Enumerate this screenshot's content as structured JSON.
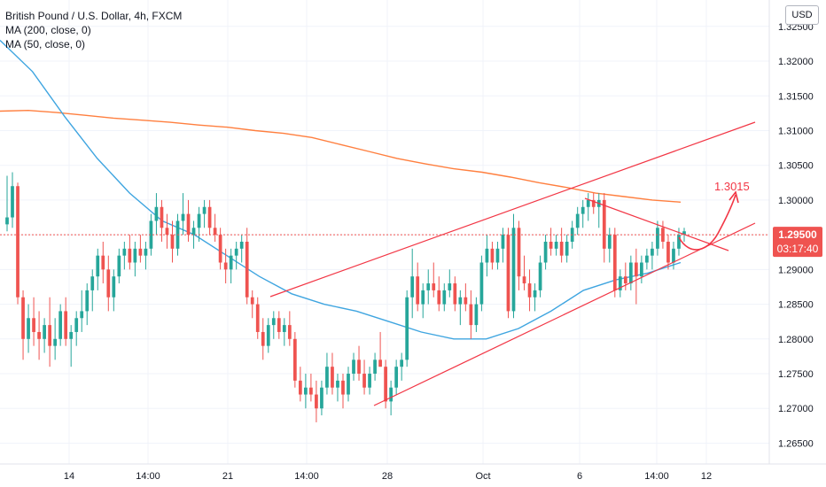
{
  "header": {
    "title": "British Pound / U.S. Dollar, 4h, FXCM",
    "indicators": [
      "MA (200, close, 0)",
      "MA (50, close, 0)"
    ],
    "currency": "USD"
  },
  "colors": {
    "up": "#26a69a",
    "down": "#ef5350",
    "ma200": "#ff7f3f",
    "ma50": "#3fa5e0",
    "drawing": "#f23645",
    "price_tag": "#ef5350"
  },
  "chart_data": {
    "type": "candlestick",
    "ylim": [
      1.262,
      1.3288
    ],
    "y_ticks": [
      "1.32500",
      "1.32000",
      "1.31500",
      "1.31000",
      "1.30500",
      "1.30000",
      "1.29500",
      "1.29000",
      "1.28500",
      "1.28000",
      "1.27500",
      "1.27000",
      "1.26500"
    ],
    "x_ticks": [
      "14",
      "14:00",
      "21",
      "14:00",
      "28",
      "Oct",
      "6",
      "14:00",
      "12"
    ],
    "last_price": "1.29500",
    "countdown": "03:17:40",
    "annotation": "1.3015",
    "candles": [
      [
        1.2965,
        1.3035,
        1.2955,
        1.2975
      ],
      [
        1.2975,
        1.304,
        1.296,
        1.302
      ],
      [
        1.302,
        1.3025,
        1.285,
        1.286
      ],
      [
        1.286,
        1.287,
        1.277,
        1.28
      ],
      [
        1.28,
        1.285,
        1.278,
        1.283
      ],
      [
        1.283,
        1.286,
        1.279,
        1.281
      ],
      [
        1.281,
        1.284,
        1.277,
        1.28
      ],
      [
        1.28,
        1.283,
        1.278,
        1.282
      ],
      [
        1.282,
        1.286,
        1.276,
        1.279
      ],
      [
        1.279,
        1.283,
        1.277,
        1.28
      ],
      [
        1.28,
        1.285,
        1.279,
        1.284
      ],
      [
        1.284,
        1.286,
        1.279,
        1.28
      ],
      [
        1.28,
        1.282,
        1.276,
        1.281
      ],
      [
        1.281,
        1.284,
        1.279,
        1.283
      ],
      [
        1.283,
        1.287,
        1.281,
        1.284
      ],
      [
        1.284,
        1.288,
        1.282,
        1.287
      ],
      [
        1.287,
        1.29,
        1.284,
        1.289
      ],
      [
        1.289,
        1.293,
        1.287,
        1.292
      ],
      [
        1.292,
        1.294,
        1.288,
        1.29
      ],
      [
        1.29,
        1.292,
        1.284,
        1.286
      ],
      [
        1.286,
        1.29,
        1.284,
        1.289
      ],
      [
        1.289,
        1.293,
        1.288,
        1.292
      ],
      [
        1.292,
        1.294,
        1.29,
        1.293
      ],
      [
        1.293,
        1.295,
        1.29,
        1.291
      ],
      [
        1.291,
        1.294,
        1.289,
        1.293
      ],
      [
        1.293,
        1.295,
        1.291,
        1.292
      ],
      [
        1.292,
        1.294,
        1.29,
        1.293
      ],
      [
        1.293,
        1.298,
        1.292,
        1.297
      ],
      [
        1.297,
        1.301,
        1.295,
        1.299
      ],
      [
        1.299,
        1.3,
        1.294,
        1.296
      ],
      [
        1.296,
        1.298,
        1.293,
        1.295
      ],
      [
        1.295,
        1.297,
        1.291,
        1.293
      ],
      [
        1.293,
        1.298,
        1.292,
        1.297
      ],
      [
        1.297,
        1.301,
        1.295,
        1.298
      ],
      [
        1.298,
        1.3,
        1.294,
        1.295
      ],
      [
        1.295,
        1.297,
        1.293,
        1.296
      ],
      [
        1.296,
        1.299,
        1.294,
        1.298
      ],
      [
        1.298,
        1.3,
        1.296,
        1.299
      ],
      [
        1.299,
        1.3,
        1.295,
        1.296
      ],
      [
        1.296,
        1.298,
        1.294,
        1.295
      ],
      [
        1.295,
        1.296,
        1.29,
        1.291
      ],
      [
        1.291,
        1.293,
        1.288,
        1.29
      ],
      [
        1.29,
        1.293,
        1.288,
        1.292
      ],
      [
        1.292,
        1.294,
        1.29,
        1.293
      ],
      [
        1.293,
        1.295,
        1.291,
        1.294
      ],
      [
        1.294,
        1.296,
        1.285,
        1.286
      ],
      [
        1.286,
        1.287,
        1.283,
        1.285
      ],
      [
        1.285,
        1.286,
        1.28,
        1.281
      ],
      [
        1.281,
        1.283,
        1.277,
        1.279
      ],
      [
        1.279,
        1.283,
        1.278,
        1.282
      ],
      [
        1.282,
        1.284,
        1.28,
        1.283
      ],
      [
        1.283,
        1.284,
        1.28,
        1.281
      ],
      [
        1.281,
        1.283,
        1.279,
        1.282
      ],
      [
        1.282,
        1.284,
        1.279,
        1.28
      ],
      [
        1.28,
        1.281,
        1.273,
        1.274
      ],
      [
        1.274,
        1.276,
        1.271,
        1.272
      ],
      [
        1.272,
        1.275,
        1.27,
        1.273
      ],
      [
        1.273,
        1.275,
        1.271,
        1.272
      ],
      [
        1.272,
        1.274,
        1.268,
        1.27
      ],
      [
        1.27,
        1.274,
        1.269,
        1.273
      ],
      [
        1.273,
        1.278,
        1.272,
        1.276
      ],
      [
        1.276,
        1.278,
        1.272,
        1.273
      ],
      [
        1.273,
        1.275,
        1.271,
        1.274
      ],
      [
        1.274,
        1.275,
        1.27,
        1.272
      ],
      [
        1.272,
        1.276,
        1.271,
        1.275
      ],
      [
        1.275,
        1.278,
        1.274,
        1.277
      ],
      [
        1.277,
        1.279,
        1.274,
        1.275
      ],
      [
        1.275,
        1.277,
        1.272,
        1.273
      ],
      [
        1.273,
        1.276,
        1.272,
        1.275
      ],
      [
        1.275,
        1.278,
        1.274,
        1.277
      ],
      [
        1.277,
        1.281,
        1.276,
        1.276
      ],
      [
        1.276,
        1.277,
        1.27,
        1.271
      ],
      [
        1.271,
        1.274,
        1.269,
        1.273
      ],
      [
        1.273,
        1.277,
        1.272,
        1.276
      ],
      [
        1.276,
        1.278,
        1.274,
        1.277
      ],
      [
        1.277,
        1.287,
        1.276,
        1.286
      ],
      [
        1.286,
        1.293,
        1.283,
        1.289
      ],
      [
        1.289,
        1.291,
        1.284,
        1.285
      ],
      [
        1.285,
        1.288,
        1.283,
        1.287
      ],
      [
        1.287,
        1.29,
        1.285,
        1.288
      ],
      [
        1.288,
        1.291,
        1.286,
        1.287
      ],
      [
        1.287,
        1.289,
        1.284,
        1.285
      ],
      [
        1.285,
        1.288,
        1.284,
        1.287
      ],
      [
        1.287,
        1.29,
        1.286,
        1.288
      ],
      [
        1.288,
        1.289,
        1.284,
        1.285
      ],
      [
        1.285,
        1.287,
        1.282,
        1.286
      ],
      [
        1.286,
        1.288,
        1.284,
        1.285
      ],
      [
        1.285,
        1.287,
        1.28,
        1.282
      ],
      [
        1.282,
        1.286,
        1.281,
        1.285
      ],
      [
        1.285,
        1.292,
        1.284,
        1.291
      ],
      [
        1.291,
        1.295,
        1.289,
        1.293
      ],
      [
        1.293,
        1.294,
        1.29,
        1.291
      ],
      [
        1.291,
        1.294,
        1.29,
        1.293
      ],
      [
        1.293,
        1.296,
        1.291,
        1.295
      ],
      [
        1.295,
        1.296,
        1.283,
        1.284
      ],
      [
        1.284,
        1.298,
        1.283,
        1.296
      ],
      [
        1.296,
        1.297,
        1.287,
        1.289
      ],
      [
        1.289,
        1.292,
        1.287,
        1.288
      ],
      [
        1.288,
        1.29,
        1.284,
        1.286
      ],
      [
        1.286,
        1.288,
        1.284,
        1.287
      ],
      [
        1.287,
        1.292,
        1.286,
        1.291
      ],
      [
        1.291,
        1.295,
        1.29,
        1.294
      ],
      [
        1.294,
        1.296,
        1.292,
        1.293
      ],
      [
        1.293,
        1.295,
        1.292,
        1.294
      ],
      [
        1.294,
        1.296,
        1.291,
        1.292
      ],
      [
        1.292,
        1.295,
        1.291,
        1.294
      ],
      [
        1.294,
        1.297,
        1.293,
        1.296
      ],
      [
        1.296,
        1.299,
        1.295,
        1.298
      ],
      [
        1.298,
        1.3,
        1.296,
        1.299
      ],
      [
        1.299,
        1.301,
        1.297,
        1.3
      ],
      [
        1.3,
        1.301,
        1.298,
        1.299
      ],
      [
        1.299,
        1.301,
        1.296,
        1.3
      ],
      [
        1.3,
        1.301,
        1.291,
        1.293
      ],
      [
        1.293,
        1.296,
        1.291,
        1.295
      ],
      [
        1.295,
        1.296,
        1.286,
        1.287
      ],
      [
        1.287,
        1.29,
        1.286,
        1.289
      ],
      [
        1.289,
        1.291,
        1.287,
        1.288
      ],
      [
        1.288,
        1.292,
        1.287,
        1.291
      ],
      [
        1.291,
        1.293,
        1.285,
        1.289
      ],
      [
        1.289,
        1.292,
        1.288,
        1.291
      ],
      [
        1.291,
        1.293,
        1.29,
        1.292
      ],
      [
        1.292,
        1.294,
        1.29,
        1.293
      ],
      [
        1.293,
        1.297,
        1.292,
        1.296
      ],
      [
        1.296,
        1.297,
        1.293,
        1.294
      ],
      [
        1.294,
        1.295,
        1.29,
        1.291
      ],
      [
        1.291,
        1.294,
        1.29,
        1.293
      ],
      [
        1.293,
        1.296,
        1.292,
        1.295
      ],
      [
        1.295,
        1.296,
        1.294,
        1.2955
      ]
    ],
    "ma200": [
      1.3128,
      1.3129,
      1.3126,
      1.3122,
      1.3118,
      1.3115,
      1.3112,
      1.3108,
      1.3105,
      1.31,
      1.3096,
      1.309,
      1.308,
      1.307,
      1.306,
      1.3052,
      1.3045,
      1.304,
      1.3033,
      1.3025,
      1.3018,
      1.301,
      1.3005,
      1.3,
      1.2997
    ],
    "ma50": [
      1.323,
      1.3185,
      1.312,
      1.306,
      1.301,
      1.297,
      1.295,
      1.292,
      1.289,
      1.2865,
      1.285,
      1.284,
      1.2825,
      1.281,
      1.28,
      1.28,
      1.2815,
      1.284,
      1.287,
      1.2885,
      1.2895,
      1.291
    ]
  }
}
